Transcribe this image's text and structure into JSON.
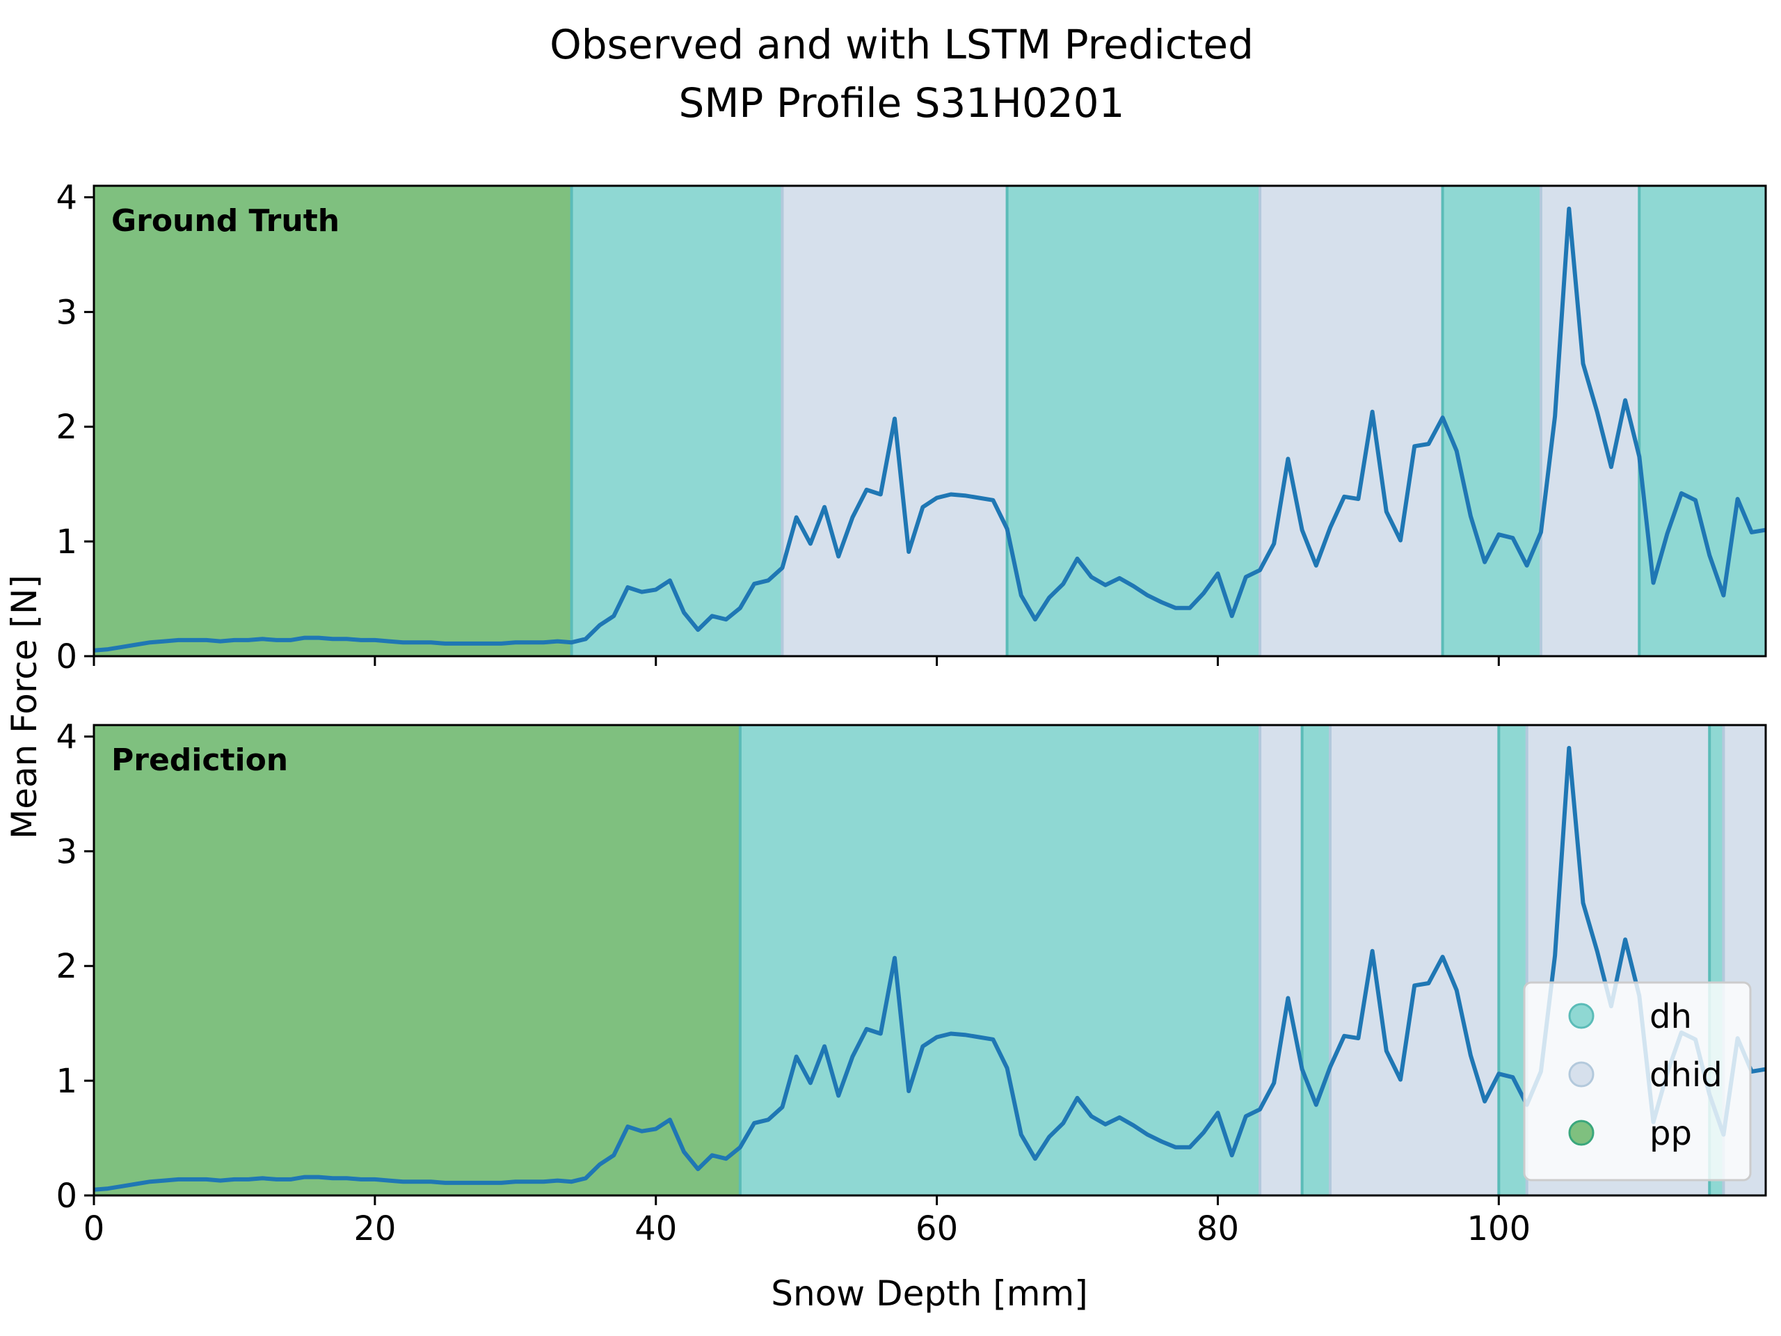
{
  "title_line1": "Observed and with LSTM Predicted",
  "title_line2": "SMP Profile S31H0201",
  "chart_data": [
    {
      "type": "line",
      "panel_label": "Ground Truth",
      "xlabel": "Snow Depth [mm]",
      "ylabel": "Mean Force [N]",
      "xlim": [
        0,
        119
      ],
      "ylim": [
        0,
        4.1
      ],
      "xticks": [
        0,
        20,
        40,
        60,
        80,
        100
      ],
      "yticks": [
        0,
        1,
        2,
        3,
        4
      ],
      "background_segments": [
        {
          "label": "pp",
          "from": 0,
          "to": 34
        },
        {
          "label": "dh",
          "from": 34,
          "to": 49
        },
        {
          "label": "dhid",
          "from": 49,
          "to": 65
        },
        {
          "label": "dh",
          "from": 65,
          "to": 83
        },
        {
          "label": "dhid",
          "from": 83,
          "to": 96
        },
        {
          "label": "dh",
          "from": 96,
          "to": 103
        },
        {
          "label": "dhid",
          "from": 103,
          "to": 110
        },
        {
          "label": "dh",
          "from": 110,
          "to": 119
        }
      ]
    },
    {
      "type": "line",
      "panel_label": "Prediction",
      "xlim": [
        0,
        119
      ],
      "ylim": [
        0,
        4.1
      ],
      "xticks": [
        0,
        20,
        40,
        60,
        80,
        100
      ],
      "yticks": [
        0,
        1,
        2,
        3,
        4
      ],
      "background_segments": [
        {
          "label": "pp",
          "from": 0,
          "to": 46
        },
        {
          "label": "dh",
          "from": 46,
          "to": 83
        },
        {
          "label": "dhid",
          "from": 83,
          "to": 86
        },
        {
          "label": "dh",
          "from": 86,
          "to": 88
        },
        {
          "label": "dhid",
          "from": 88,
          "to": 100
        },
        {
          "label": "dh",
          "from": 100,
          "to": 102
        },
        {
          "label": "dhid",
          "from": 102,
          "to": 115
        },
        {
          "label": "dh",
          "from": 115,
          "to": 116
        },
        {
          "label": "dhid",
          "from": 116,
          "to": 119
        }
      ],
      "legend": {
        "position": "lower right",
        "entries": [
          {
            "label": "dh",
            "color": "#8fd8d3"
          },
          {
            "label": "dhid",
            "color": "#d6e0ec"
          },
          {
            "label": "pp",
            "color": "#7fc07f"
          }
        ]
      }
    }
  ],
  "signal": {
    "color": "#1f77b4",
    "x": [
      0,
      1,
      2,
      3,
      4,
      5,
      6,
      7,
      8,
      9,
      10,
      11,
      12,
      13,
      14,
      15,
      16,
      17,
      18,
      19,
      20,
      21,
      22,
      23,
      24,
      25,
      26,
      27,
      28,
      29,
      30,
      31,
      32,
      33,
      34,
      35,
      36,
      37,
      38,
      39,
      40,
      41,
      42,
      43,
      44,
      45,
      46,
      47,
      48,
      49,
      50,
      51,
      52,
      53,
      54,
      55,
      56,
      57,
      58,
      59,
      60,
      61,
      62,
      63,
      64,
      65,
      66,
      67,
      68,
      69,
      70,
      71,
      72,
      73,
      74,
      75,
      76,
      77,
      78,
      79,
      80,
      81,
      82,
      83,
      84,
      85,
      86,
      87,
      88,
      89,
      90,
      91,
      92,
      93,
      94,
      95,
      96,
      97,
      98,
      99,
      100,
      101,
      102,
      103,
      104,
      105,
      106,
      107,
      108,
      109,
      110,
      111,
      112,
      113,
      114,
      115,
      116,
      117,
      118,
      119
    ],
    "y": [
      0.05,
      0.06,
      0.08,
      0.1,
      0.12,
      0.13,
      0.14,
      0.14,
      0.14,
      0.13,
      0.14,
      0.14,
      0.15,
      0.14,
      0.14,
      0.16,
      0.16,
      0.15,
      0.15,
      0.14,
      0.14,
      0.13,
      0.12,
      0.12,
      0.12,
      0.11,
      0.11,
      0.11,
      0.11,
      0.11,
      0.12,
      0.12,
      0.12,
      0.13,
      0.12,
      0.15,
      0.27,
      0.35,
      0.6,
      0.56,
      0.58,
      0.66,
      0.38,
      0.23,
      0.35,
      0.32,
      0.42,
      0.63,
      0.66,
      0.77,
      1.21,
      0.98,
      1.3,
      0.87,
      1.21,
      1.45,
      1.41,
      2.07,
      0.91,
      1.3,
      1.38,
      1.41,
      1.4,
      1.38,
      1.36,
      1.11,
      0.53,
      0.32,
      0.51,
      0.63,
      0.85,
      0.69,
      0.62,
      0.68,
      0.61,
      0.53,
      0.47,
      0.42,
      0.42,
      0.55,
      0.72,
      0.35,
      0.69,
      0.75,
      0.98,
      1.72,
      1.1,
      0.79,
      1.12,
      1.39,
      1.37,
      2.13,
      1.26,
      1.01,
      1.83,
      1.85,
      2.08,
      1.79,
      1.22,
      0.82,
      1.06,
      1.03,
      0.79,
      1.08,
      2.09,
      3.9,
      2.55,
      2.13,
      1.65,
      2.23,
      1.74,
      0.64,
      1.07,
      1.42,
      1.36,
      0.88,
      0.53,
      1.37,
      1.08,
      1.1
    ]
  },
  "colors": {
    "pp": "#7fc07f",
    "dh": "#8fd8d3",
    "dhid": "#d6e0ec",
    "pp_edge": "#3aa77c",
    "dh_edge": "#5bbcb8",
    "dhid_edge": "#b3c9dc"
  }
}
